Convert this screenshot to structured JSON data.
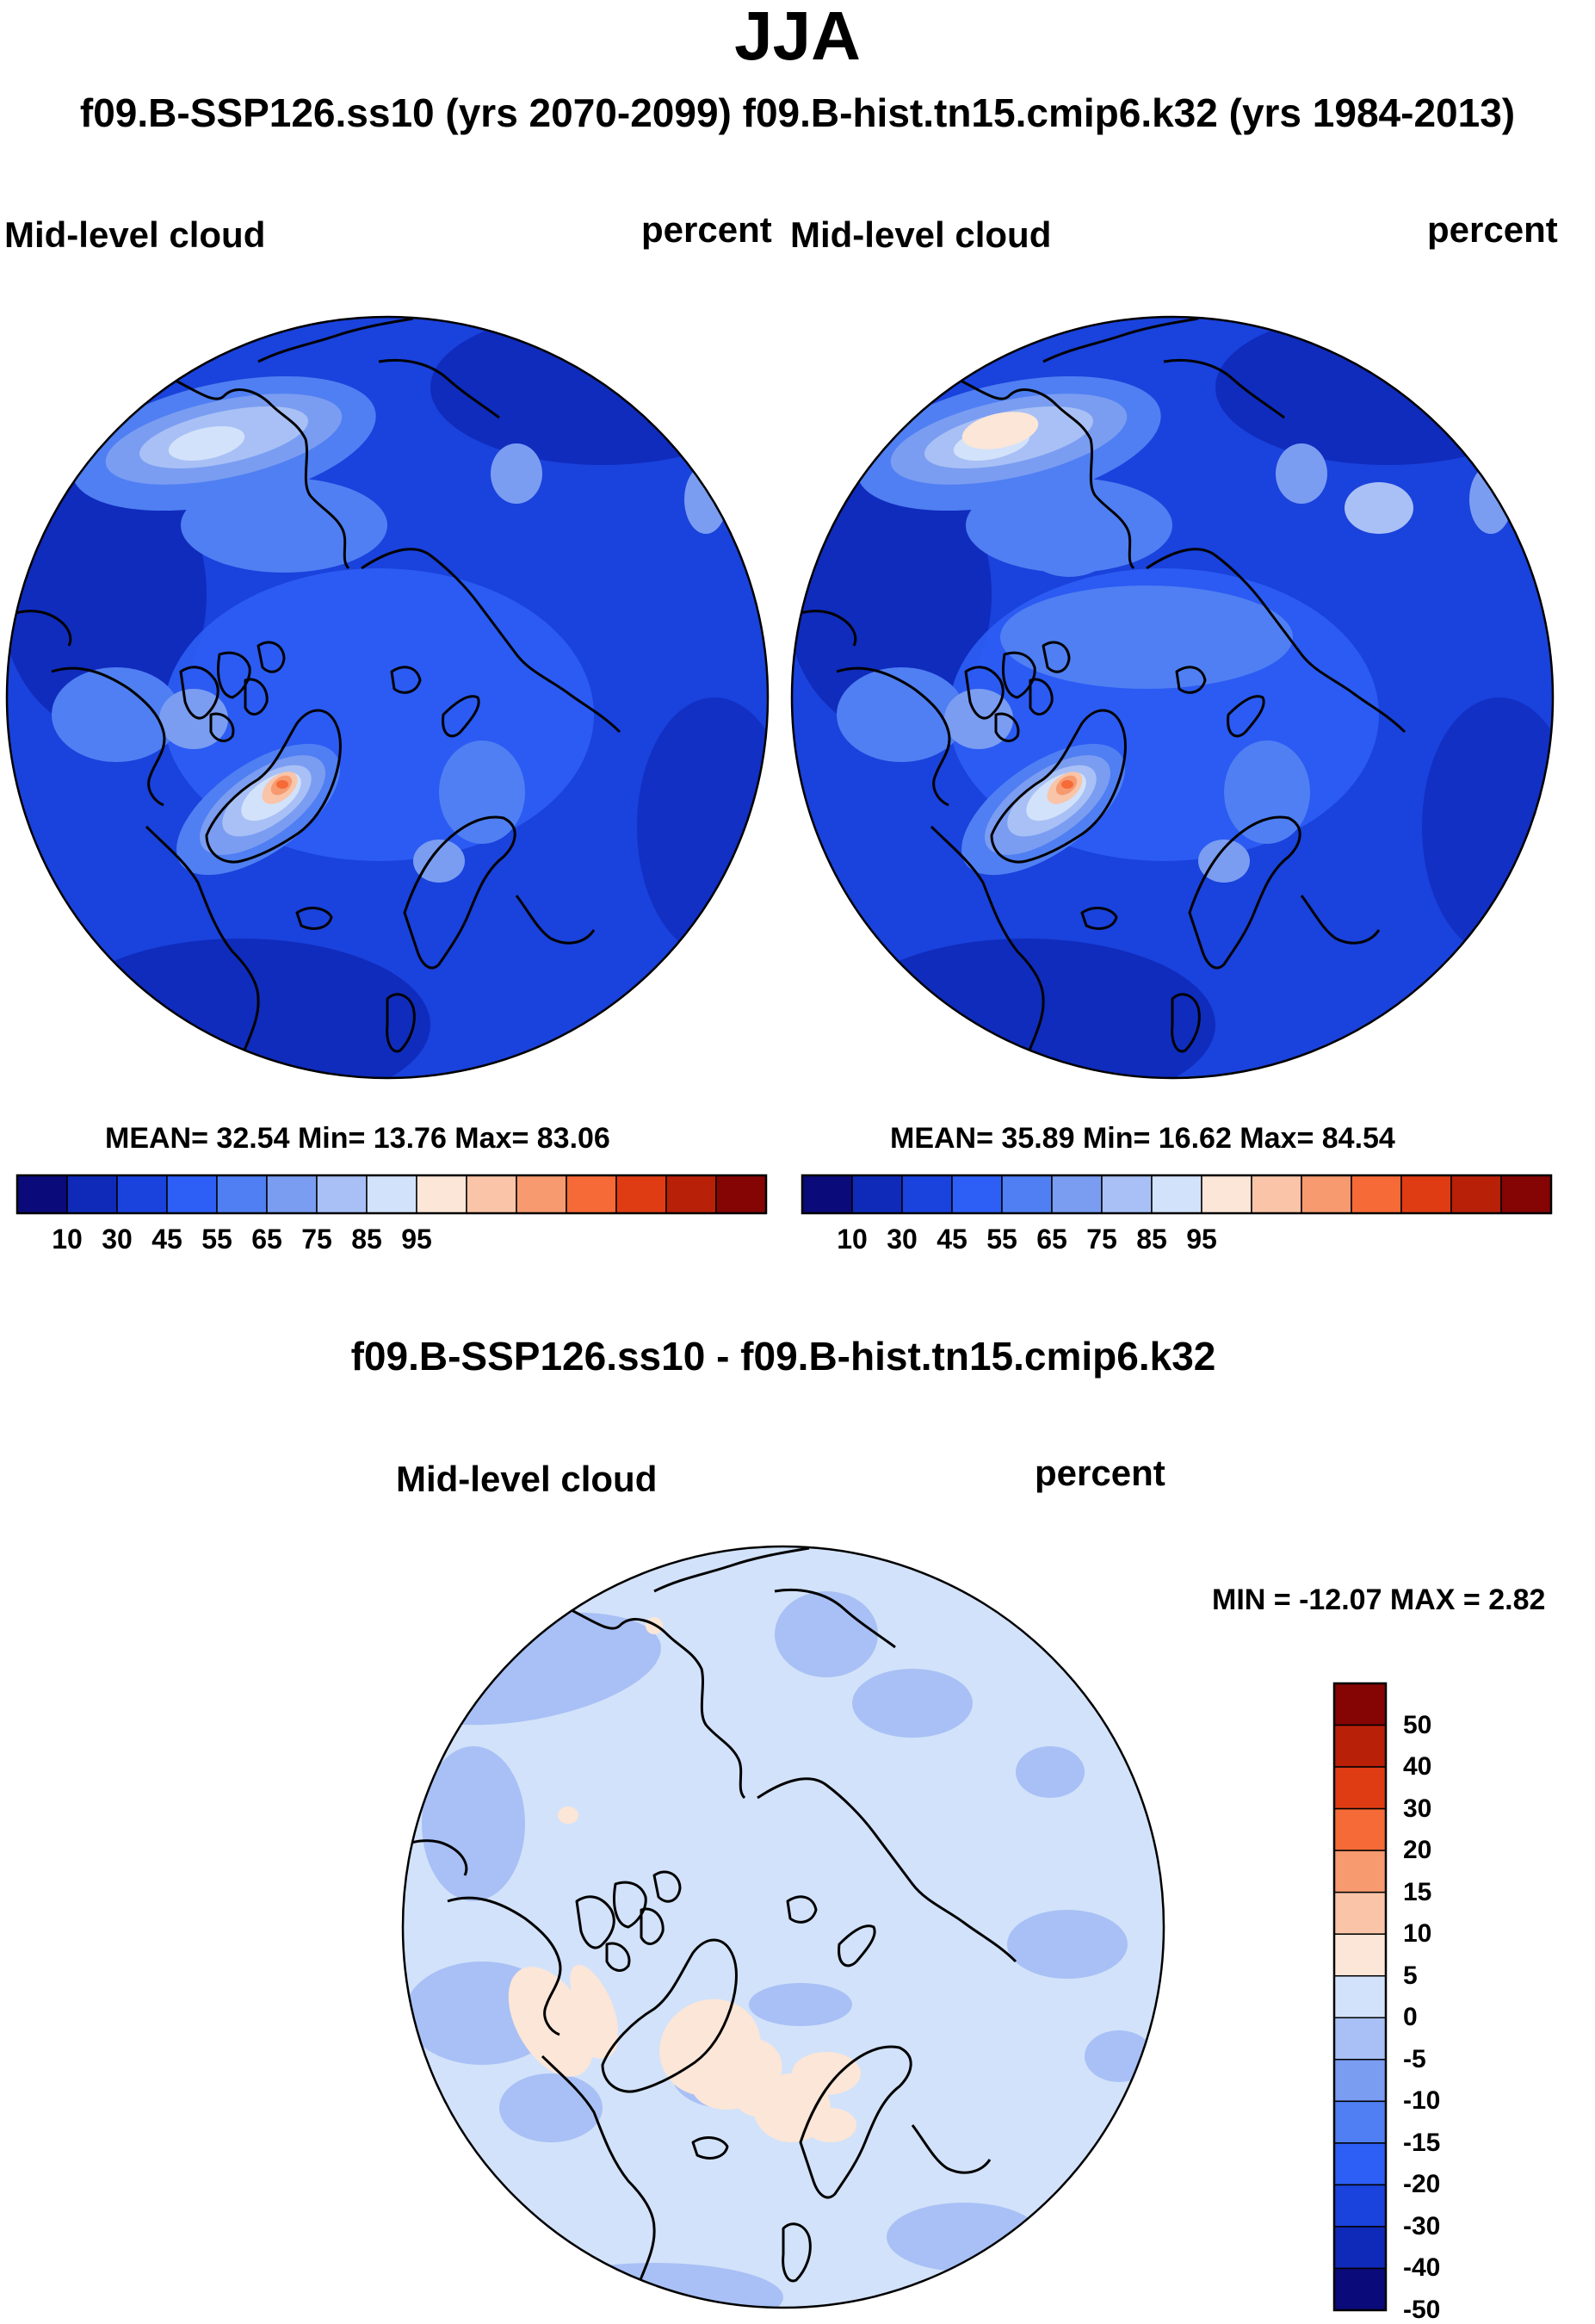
{
  "season": "JJA",
  "subtitle": "f09.B-SSP126.ss10 (yrs 2070-2099)  f09.B-hist.tn15.cmip6.k32 (yrs 1984-2013)",
  "difference_title": "f09.B-SSP126.ss10 - f09.B-hist.tn15.cmip6.k32",
  "colors": {
    "abs_scale": [
      "#0a0a7a",
      "#0f2ab9",
      "#1a42dc",
      "#2d5ef5",
      "#4f7ff2",
      "#7a9df2",
      "#a8c0f5",
      "#d2e2fa",
      "#fce6d7",
      "#f9c4a8",
      "#f79a70",
      "#f56a36",
      "#e03c14",
      "#b82008",
      "#850404"
    ],
    "diff_scale": [
      "#0a0a7a",
      "#0f2ab9",
      "#1a42dc",
      "#2d5ef5",
      "#4f7ff2",
      "#7a9df2",
      "#a8c0f5",
      "#d2e2fa",
      "#fce6d7",
      "#f9c4a8",
      "#f79a70",
      "#f56a36",
      "#e03c14",
      "#b82008",
      "#850404"
    ],
    "coastline": "#000000"
  },
  "chart_data": [
    {
      "type": "heatmap",
      "projection": "north polar stereographic",
      "variable": "Mid-level cloud",
      "units": "percent",
      "case": "f09.B-SSP126.ss10 (yrs 2070-2099)",
      "stats_label": "MEAN=  32.54  Min=  13.76  Max=  83.06",
      "mean": 32.54,
      "min": 13.76,
      "max": 83.06,
      "colorbar_ticks": [
        "10",
        "30",
        "45",
        "55",
        "65",
        "75",
        "85",
        "95"
      ],
      "levels": [
        10,
        20,
        30,
        40,
        45,
        50,
        55,
        60,
        65,
        70,
        75,
        80,
        85,
        90,
        95
      ]
    },
    {
      "type": "heatmap",
      "projection": "north polar stereographic",
      "variable": "Mid-level cloud",
      "units": "percent",
      "case": "f09.B-hist.tn15.cmip6.k32 (yrs 1984-2013)",
      "stats_label": "MEAN=  35.89  Min=  16.62  Max=  84.54",
      "mean": 35.89,
      "min": 16.62,
      "max": 84.54,
      "colorbar_ticks": [
        "10",
        "30",
        "45",
        "55",
        "65",
        "75",
        "85",
        "95"
      ],
      "levels": [
        10,
        20,
        30,
        40,
        45,
        50,
        55,
        60,
        65,
        70,
        75,
        80,
        85,
        90,
        95
      ]
    },
    {
      "type": "heatmap",
      "projection": "north polar stereographic",
      "variable": "Mid-level cloud",
      "units": "percent",
      "case": "f09.B-SSP126.ss10 - f09.B-hist.tn15.cmip6.k32",
      "stats_label": "MIN = -12.07 MAX =   2.82",
      "min": -12.07,
      "max": 2.82,
      "colorbar_ticks": [
        "50",
        "40",
        "30",
        "20",
        "15",
        "10",
        "5",
        "0",
        "-5",
        "-10",
        "-15",
        "-20",
        "-30",
        "-40",
        "-50"
      ]
    }
  ]
}
